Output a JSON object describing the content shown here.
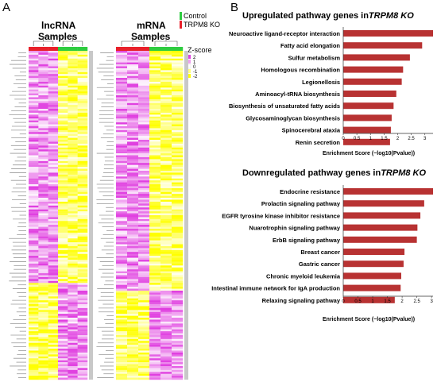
{
  "panel_a": {
    "letter": "A",
    "lncrna_title": "lncRNA",
    "mrna_title": "mRNA",
    "samples_label": "Samples",
    "group_legend": [
      {
        "label": "Control",
        "color": "#2ecc40"
      },
      {
        "label": "TRPM8  KO",
        "color": "#e8202a"
      }
    ],
    "zscore": {
      "title": "Z-score",
      "ticks": [
        "2",
        "1",
        "0",
        "-1",
        "-2"
      ]
    },
    "colors": {
      "high": "#ffff00",
      "mid": "#ffffff",
      "low": "#e040e0"
    }
  },
  "panel_b": {
    "letter": "B"
  },
  "chart_data": [
    {
      "type": "bar",
      "orientation": "horizontal",
      "title": "Upregulated pathway genes in",
      "title_italic": "TRPM8 KO",
      "xlabel": "Enrichment Score (−log10(Pvalue))",
      "xlim": [
        0,
        3.3
      ],
      "xticks": [
        "0",
        "0.5",
        "1",
        "1.5",
        "2",
        "2.5",
        "3"
      ],
      "bar_color": "#b83232",
      "categories": [
        "Neuroactive ligand-receptor interaction",
        "Fatty acid elongation",
        "Sulfur metabolism",
        "Homologous recombination",
        "Legionellosis",
        "Aminoacyl-tRNA biosynthesis",
        "Biosynthesis of unsaturated fatty acids",
        "Glycosaminoglycan biosynthesis",
        "Spinocerebral ataxia",
        "Renin secretion"
      ],
      "values": [
        3.3,
        2.9,
        2.45,
        2.2,
        2.15,
        1.95,
        1.85,
        1.78,
        1.75,
        1.72
      ]
    },
    {
      "type": "bar",
      "orientation": "horizontal",
      "title": "Downregulated pathway genes in",
      "title_italic": "TRPM8 KO",
      "xlabel": "Enrichment Score (−log10(Pvalue))",
      "xlim": [
        0,
        3.05
      ],
      "xticks": [
        "0",
        "0.5",
        "1",
        "1.5",
        "2",
        "2.5",
        "3"
      ],
      "bar_color": "#b83232",
      "categories": [
        "Endocrine resistance",
        "Prolactin signaling pathway",
        "EGFR tyrosine kinase inhibitor resistance",
        "Nuarotrophin signaling pathway",
        "ErbB signaling pathway",
        "Breast cancer",
        "Gastric cancer",
        "Chronic myeloid leukemia",
        "Intestinal immune network for IgA production",
        "Relaxing signaling pathway"
      ],
      "values": [
        3.05,
        2.75,
        2.62,
        2.52,
        2.5,
        2.08,
        2.05,
        1.97,
        1.95,
        1.75
      ]
    }
  ]
}
